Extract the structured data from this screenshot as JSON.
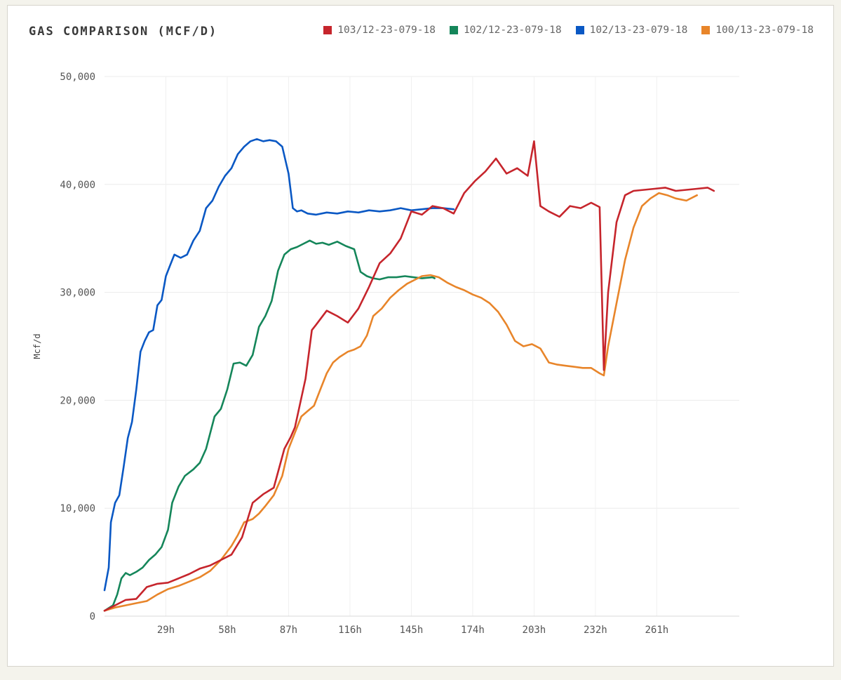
{
  "chart_data": {
    "type": "line",
    "title": "GAS COMPARISON (MCF/D)",
    "xlabel": "",
    "ylabel": "Mcf/d",
    "xlim": [
      0,
      300
    ],
    "ylim": [
      0,
      50000
    ],
    "x_ticks": [
      29,
      58,
      87,
      116,
      145,
      174,
      203,
      232,
      261
    ],
    "x_tick_labels": [
      "29h",
      "58h",
      "87h",
      "116h",
      "145h",
      "174h",
      "203h",
      "232h",
      "261h"
    ],
    "y_ticks": [
      0,
      10000,
      20000,
      30000,
      40000,
      50000
    ],
    "y_tick_labels": [
      "0",
      "10,000",
      "20,000",
      "30,000",
      "40,000",
      "50,000"
    ],
    "grid": true,
    "legend_position": "top-right",
    "series": [
      {
        "name": "103/12-23-079-18",
        "color": "#c6252c",
        "x": [
          0,
          5,
          10,
          15,
          20,
          25,
          30,
          35,
          40,
          45,
          50,
          55,
          60,
          65,
          70,
          75,
          80,
          85,
          88,
          90,
          95,
          98,
          100,
          105,
          110,
          115,
          120,
          125,
          130,
          135,
          140,
          145,
          150,
          155,
          160,
          165,
          170,
          175,
          180,
          185,
          190,
          195,
          200,
          203,
          206,
          210,
          215,
          220,
          225,
          230,
          234,
          236,
          238,
          242,
          246,
          250,
          255,
          260,
          265,
          270,
          275,
          280,
          285,
          288
        ],
        "values": [
          500,
          1000,
          1500,
          1600,
          2700,
          3000,
          3100,
          3500,
          3900,
          4400,
          4700,
          5200,
          5700,
          7300,
          10500,
          11300,
          11900,
          15500,
          16600,
          17500,
          22000,
          26500,
          27000,
          28300,
          27800,
          27200,
          28500,
          30500,
          32700,
          33600,
          35000,
          37500,
          37200,
          38000,
          37800,
          37300,
          39200,
          40300,
          41200,
          42400,
          41000,
          41500,
          40800,
          44000,
          38000,
          37500,
          37000,
          38000,
          37800,
          38300,
          37900,
          22800,
          30000,
          36500,
          39000,
          39400,
          39500,
          39600,
          39700,
          39400,
          39500,
          39600,
          39700,
          39400
        ]
      },
      {
        "name": "102/12-23-079-18",
        "color": "#15865a",
        "x": [
          0,
          4,
          6,
          8,
          10,
          12,
          15,
          18,
          21,
          24,
          27,
          30,
          32,
          35,
          38,
          42,
          45,
          48,
          52,
          55,
          58,
          61,
          64,
          67,
          70,
          73,
          76,
          79,
          82,
          85,
          88,
          91,
          94,
          97,
          100,
          103,
          106,
          110,
          114,
          118,
          121,
          124,
          127,
          130,
          134,
          138,
          142,
          146,
          150,
          155,
          156
        ],
        "values": [
          500,
          1000,
          2000,
          3500,
          4000,
          3800,
          4100,
          4500,
          5200,
          5700,
          6400,
          8000,
          10500,
          12000,
          13000,
          13600,
          14200,
          15500,
          18500,
          19200,
          21000,
          23400,
          23500,
          23200,
          24200,
          26800,
          27800,
          29200,
          32000,
          33500,
          34000,
          34200,
          34500,
          34800,
          34500,
          34600,
          34400,
          34700,
          34300,
          34000,
          31900,
          31500,
          31300,
          31200,
          31400,
          31400,
          31500,
          31400,
          31300,
          31400,
          31300
        ]
      },
      {
        "name": "102/13-23-079-18",
        "color": "#0a58c4",
        "x": [
          0,
          2,
          3,
          5,
          7,
          9,
          11,
          13,
          15,
          17,
          19,
          21,
          23,
          25,
          27,
          29,
          31,
          33,
          36,
          39,
          42,
          45,
          48,
          51,
          54,
          57,
          60,
          63,
          66,
          69,
          72,
          75,
          78,
          81,
          84,
          87,
          89,
          91,
          93,
          96,
          100,
          105,
          110,
          115,
          120,
          125,
          130,
          135,
          140,
          145,
          150,
          155,
          160,
          165
        ],
        "values": [
          2400,
          4500,
          8700,
          10500,
          11200,
          13800,
          16500,
          18000,
          21000,
          24500,
          25500,
          26300,
          26500,
          28800,
          29300,
          31500,
          32500,
          33500,
          33200,
          33500,
          34800,
          35700,
          37800,
          38500,
          39800,
          40800,
          41500,
          42800,
          43500,
          44000,
          44200,
          44000,
          44100,
          44000,
          43500,
          41000,
          37800,
          37500,
          37600,
          37300,
          37200,
          37400,
          37300,
          37500,
          37400,
          37600,
          37500,
          37600,
          37800,
          37600,
          37700,
          37800,
          37800,
          37700
        ]
      },
      {
        "name": "100/13-23-079-18",
        "color": "#e8852a",
        "x": [
          0,
          5,
          10,
          15,
          20,
          25,
          30,
          35,
          40,
          45,
          50,
          55,
          60,
          63,
          66,
          70,
          73,
          76,
          80,
          84,
          87,
          90,
          93,
          96,
          99,
          102,
          105,
          108,
          111,
          115,
          118,
          121,
          124,
          127,
          131,
          135,
          139,
          143,
          147,
          150,
          154,
          158,
          162,
          166,
          170,
          174,
          178,
          182,
          186,
          190,
          194,
          198,
          202,
          206,
          210,
          214,
          218,
          222,
          226,
          230,
          234,
          236,
          238,
          242,
          246,
          250,
          254,
          258,
          262,
          266,
          270,
          275,
          280
        ],
        "values": [
          500,
          800,
          1000,
          1200,
          1400,
          2000,
          2500,
          2800,
          3200,
          3600,
          4200,
          5200,
          6500,
          7500,
          8700,
          9000,
          9500,
          10200,
          11200,
          13000,
          15500,
          17000,
          18500,
          19000,
          19500,
          21000,
          22500,
          23500,
          24000,
          24500,
          24700,
          25000,
          26000,
          27800,
          28500,
          29500,
          30200,
          30800,
          31200,
          31500,
          31600,
          31400,
          30900,
          30500,
          30200,
          29800,
          29500,
          29000,
          28200,
          27000,
          25500,
          25000,
          25200,
          24800,
          23500,
          23300,
          23200,
          23100,
          23000,
          23000,
          22500,
          22300,
          25000,
          29000,
          33000,
          36000,
          38000,
          38700,
          39200,
          39000,
          38700,
          38500,
          39000
        ]
      }
    ]
  }
}
